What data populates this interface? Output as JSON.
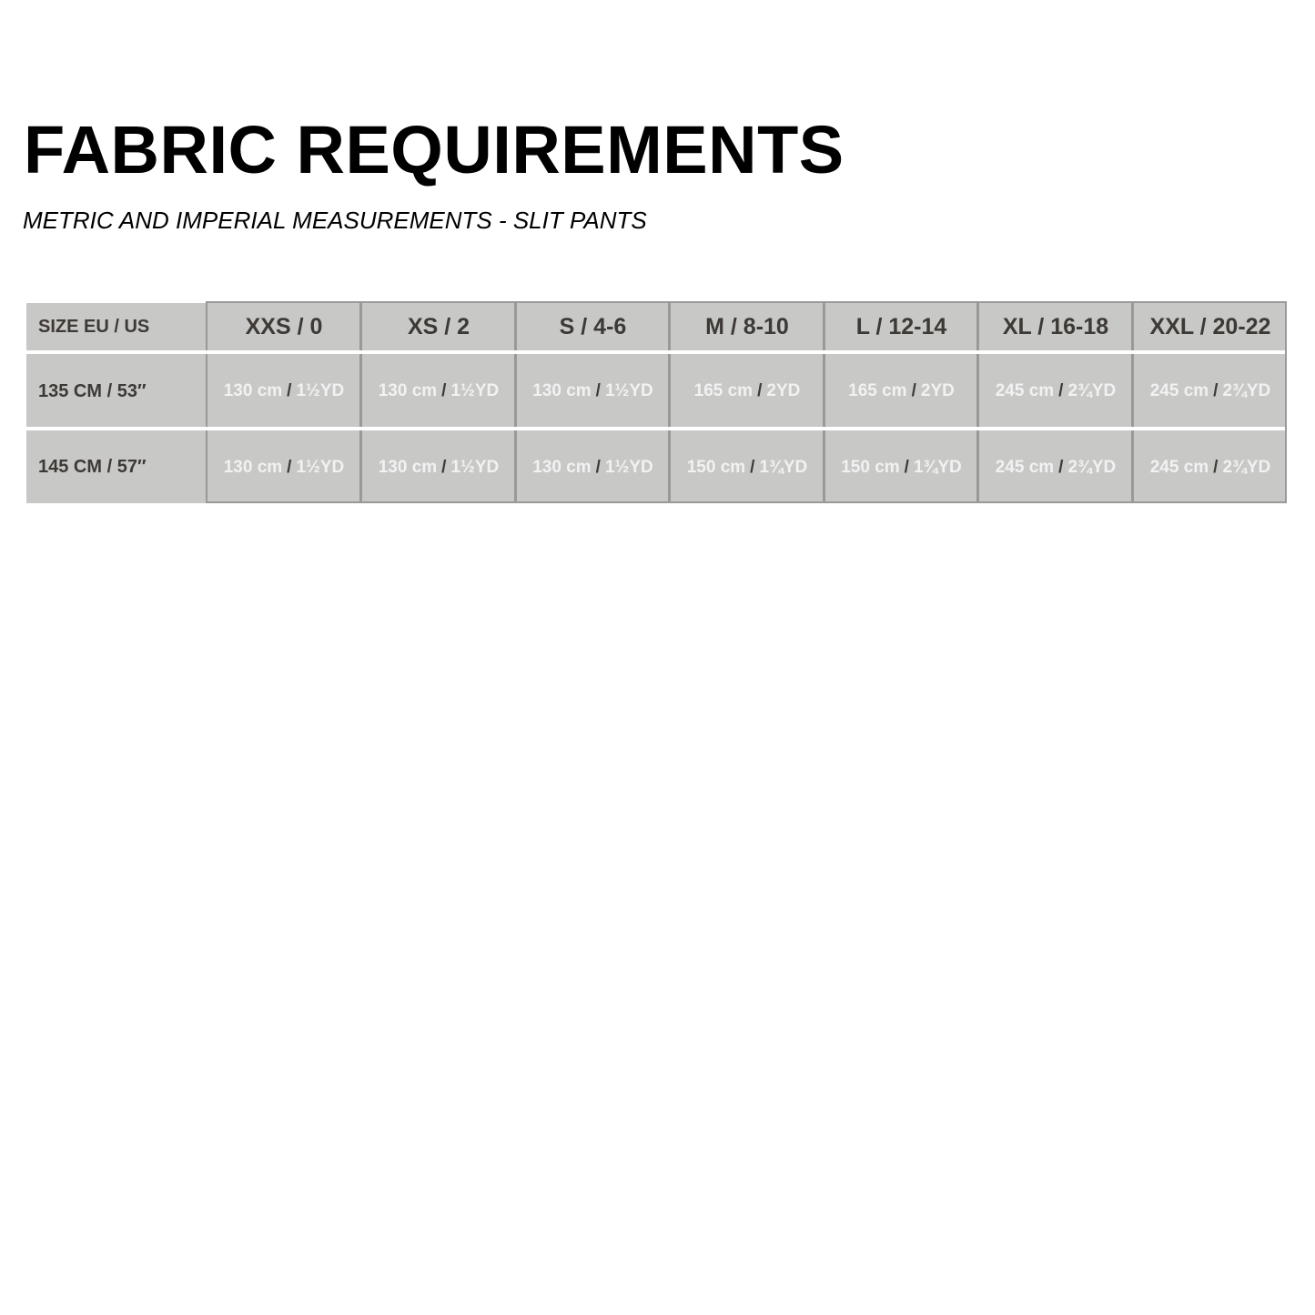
{
  "title": "FABRIC REQUIREMENTS",
  "subtitle": "METRIC AND IMPERIAL MEASUREMENTS - SLIT PANTS",
  "table": {
    "corner": "SIZE EU / US",
    "columns": [
      "XXS / 0",
      "XS / 2",
      "S / 4-6",
      "M / 8-10",
      "L  / 12-14",
      "XL / 16-18",
      "XXL / 20-22"
    ],
    "rows": [
      {
        "label": "135 CM / 53″",
        "cells": [
          {
            "cm": "130 cm",
            "yd": "1½YD"
          },
          {
            "cm": "130 cm",
            "yd": "1½YD"
          },
          {
            "cm": "130 cm",
            "yd": "1½YD"
          },
          {
            "cm": "165 cm",
            "yd": "2YD"
          },
          {
            "cm": "165 cm",
            "yd": "2YD"
          },
          {
            "cm": "245 cm",
            "yd": "2¾YD"
          },
          {
            "cm": "245 cm",
            "yd": "2¾YD"
          }
        ]
      },
      {
        "label": "145 CM / 57″",
        "cells": [
          {
            "cm": "130 cm",
            "yd": "1½YD"
          },
          {
            "cm": "130 cm",
            "yd": "1½YD"
          },
          {
            "cm": "130 cm",
            "yd": "1½YD"
          },
          {
            "cm": "150 cm",
            "yd": "1¾YD"
          },
          {
            "cm": "150 cm",
            "yd": "1¾YD"
          },
          {
            "cm": "245 cm",
            "yd": "2¾YD"
          },
          {
            "cm": "245 cm",
            "yd": "2¾YD"
          }
        ]
      }
    ],
    "separator": "/"
  },
  "colors": {
    "cell_bg": "#c8c8c7",
    "border": "#999999",
    "header_text": "#3d3935",
    "value_text": "#f2f2f2"
  }
}
